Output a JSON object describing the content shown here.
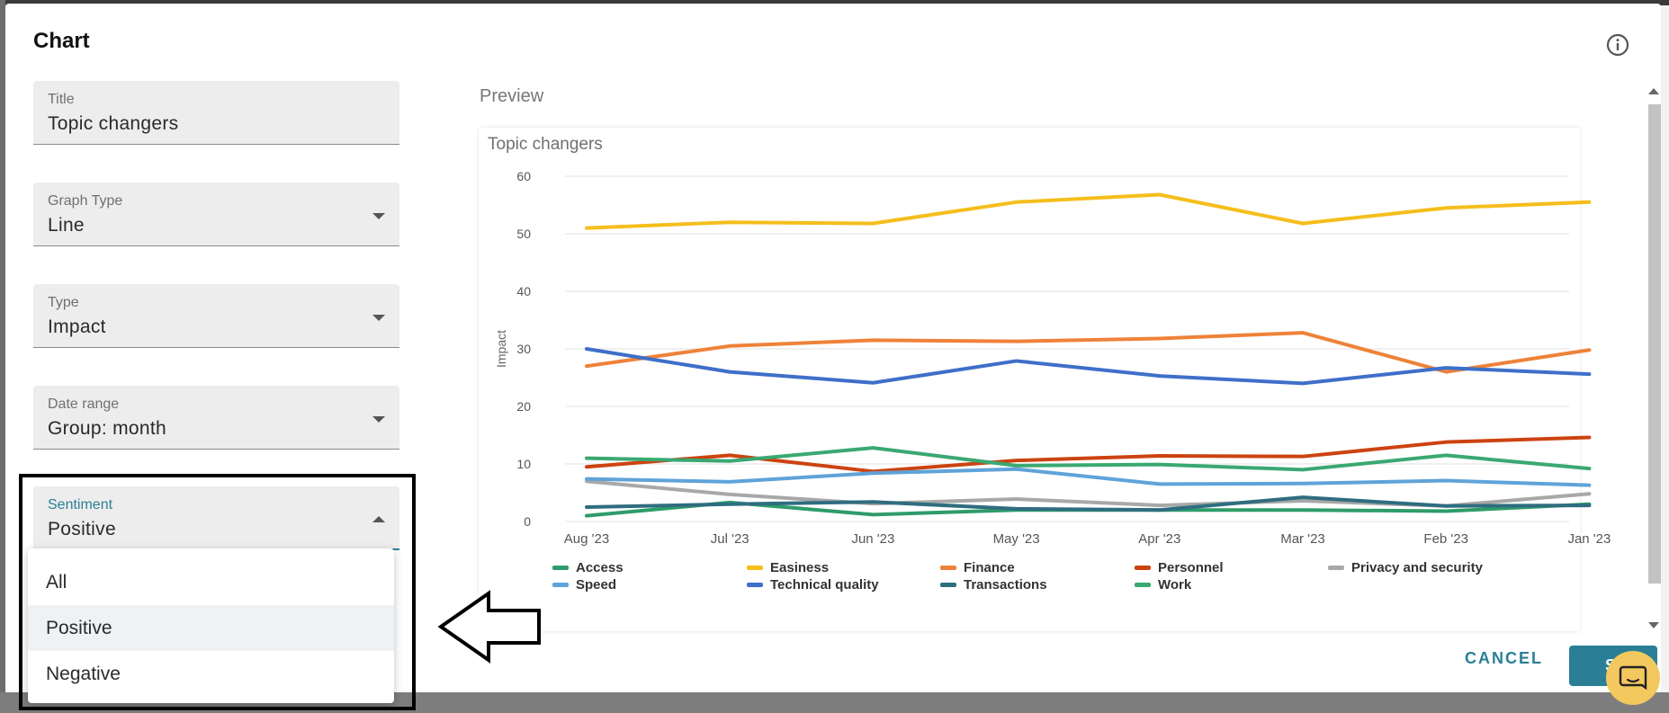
{
  "dialog": {
    "title": "Chart"
  },
  "form": {
    "title": {
      "label": "Title",
      "value": "Topic changers"
    },
    "graph_type": {
      "label": "Graph Type",
      "value": "Line"
    },
    "type": {
      "label": "Type",
      "value": "Impact"
    },
    "date_range": {
      "label": "Date range",
      "value": "Group: month"
    },
    "sentiment": {
      "label": "Sentiment",
      "value": "Positive",
      "options": [
        "All",
        "Positive",
        "Negative"
      ]
    }
  },
  "preview": {
    "label": "Preview"
  },
  "actions": {
    "cancel": "CANCEL",
    "save": "SAVE"
  },
  "chart_data": {
    "type": "line",
    "title": "Topic changers",
    "ylabel": "Impact",
    "xlabel": "",
    "ylim": [
      0,
      60
    ],
    "yticks": [
      0,
      10,
      20,
      30,
      40,
      50,
      60
    ],
    "categories": [
      "Aug '23",
      "Jul '23",
      "Jun '23",
      "May '23",
      "Apr '23",
      "Mar '23",
      "Feb '23",
      "Jan '23"
    ],
    "legend_position": "bottom",
    "grid": true,
    "series": [
      {
        "name": "Access",
        "color": "#2e9c6a",
        "values": [
          1,
          3.3,
          1.2,
          2,
          2,
          2,
          1.8,
          3
        ]
      },
      {
        "name": "Easiness",
        "color": "#f5be1c",
        "values": [
          51,
          52,
          51.8,
          55.5,
          56.8,
          51.8,
          54.5,
          55.5
        ]
      },
      {
        "name": "Finance",
        "color": "#ee8238",
        "values": [
          27,
          30.5,
          31.5,
          31.3,
          31.8,
          32.8,
          26,
          29.8
        ]
      },
      {
        "name": "Personnel",
        "color": "#cc4310",
        "values": [
          9.5,
          11.5,
          8.7,
          10.6,
          11.4,
          11.3,
          13.8,
          14.6
        ]
      },
      {
        "name": "Privacy and security",
        "color": "#a8a8a8",
        "values": [
          7,
          4.7,
          3.1,
          3.9,
          2.8,
          3.6,
          2.7,
          4.8
        ]
      },
      {
        "name": "Speed",
        "color": "#5fa3d9",
        "values": [
          7.4,
          6.9,
          8.4,
          9.1,
          6.5,
          6.6,
          7.1,
          6.3
        ]
      },
      {
        "name": "Technical quality",
        "color": "#3e6fc9",
        "values": [
          30,
          26,
          24.1,
          27.9,
          25.3,
          24,
          26.7,
          25.6
        ]
      },
      {
        "name": "Transactions",
        "color": "#2f6d80",
        "values": [
          2.5,
          3,
          3.4,
          2.2,
          2,
          4.2,
          2.7,
          2.8
        ]
      },
      {
        "name": "Work",
        "color": "#3aa872",
        "values": [
          11,
          10.5,
          12.8,
          9.7,
          9.9,
          9,
          11.5,
          9.2
        ]
      }
    ]
  }
}
